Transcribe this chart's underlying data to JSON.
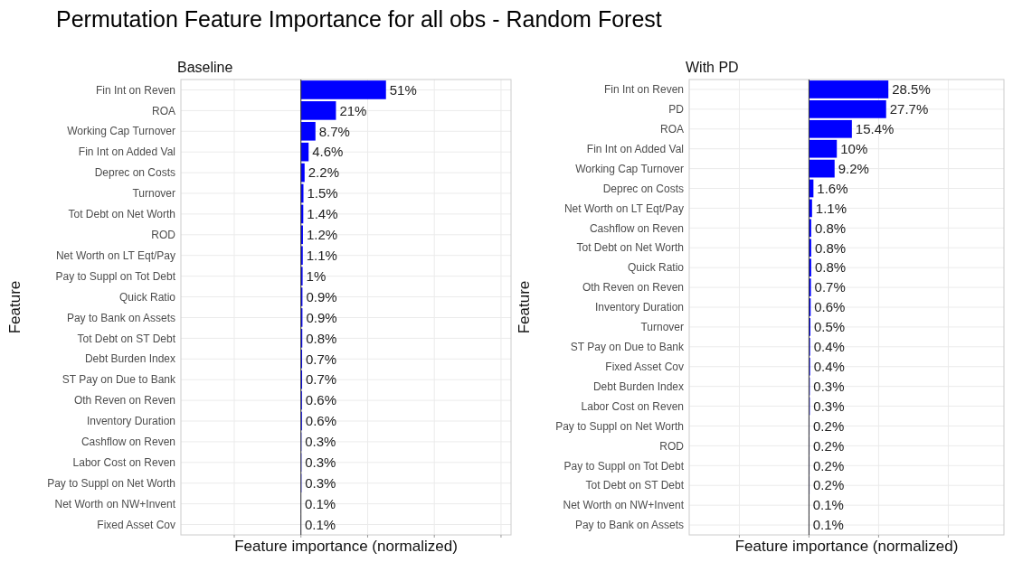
{
  "chart_data": [
    {
      "type": "bar",
      "orientation": "horizontal",
      "title": "Permutation Feature Importance for all obs - Random Forest",
      "subtitle": "Baseline",
      "xlabel": "Feature importance (normalized)",
      "ylabel": "Feature",
      "grid": true,
      "tick_labels": "y",
      "xlim": [
        -72,
        126
      ],
      "xticks": [
        {
          "value": -40,
          "label": null
        },
        {
          "value": 0,
          "label": null
        },
        {
          "value": 40,
          "label": null
        },
        {
          "value": 80,
          "label": null
        },
        {
          "value": 120,
          "label": null
        }
      ],
      "categories": [
        "Fin Int on Reven",
        "ROA",
        "Working Cap Turnover",
        "Fin Int on Added Val",
        "Deprec on Costs",
        "Turnover",
        "Tot Debt on Net Worth",
        "ROD",
        "Net Worth on LT Eqt/Pay",
        "Pay to Suppl on Tot Debt",
        "Quick Ratio",
        "Pay to Bank on Assets",
        "Tot Debt on ST Debt",
        "Debt Burden Index",
        "ST Pay on Due to Bank",
        "Oth Reven on Reven",
        "Inventory Duration",
        "Cashflow on Reven",
        "Labor Cost on Reven",
        "Pay to Suppl on Net Worth",
        "Net Worth on NW+Invent",
        "Fixed Asset Cov"
      ],
      "color": "#0000ff",
      "values": [
        51,
        21,
        8.7,
        4.6,
        2.2,
        1.5,
        1.4,
        1.2,
        1.1,
        1,
        0.9,
        0.9,
        0.8,
        0.7,
        0.7,
        0.6,
        0.6,
        0.3,
        0.3,
        0.3,
        0.1,
        0.1
      ],
      "value_labels": [
        "51%",
        "21%",
        "8.7%",
        "4.6%",
        "2.2%",
        "1.5%",
        "1.4%",
        "1.2%",
        "1.1%",
        "1%",
        "0.9%",
        "0.9%",
        "0.8%",
        "0.7%",
        "0.7%",
        "0.6%",
        "0.6%",
        "0.3%",
        "0.3%",
        "0.3%",
        "0.1%",
        "0.1%"
      ]
    },
    {
      "type": "bar",
      "orientation": "horizontal",
      "subtitle": "With PD",
      "xlabel": "Feature importance (normalized)",
      "ylabel": "Feature",
      "grid": true,
      "tick_labels": "y",
      "xlim": [
        -43,
        70
      ],
      "xticks": [
        {
          "value": -25,
          "label": null
        },
        {
          "value": 0,
          "label": null
        },
        {
          "value": 25,
          "label": null
        },
        {
          "value": 50,
          "label": null
        }
      ],
      "categories": [
        "Fin Int on Reven",
        "PD",
        "ROA",
        "Fin Int on Added Val",
        "Working Cap Turnover",
        "Deprec on Costs",
        "Net Worth on LT Eqt/Pay",
        "Cashflow on Reven",
        "Tot Debt on Net Worth",
        "Quick Ratio",
        "Oth Reven on Reven",
        "Inventory Duration",
        "Turnover",
        "ST Pay on Due to Bank",
        "Fixed Asset Cov",
        "Debt Burden Index",
        "Labor Cost on Reven",
        "Pay to Suppl on Net Worth",
        "ROD",
        "Pay to Suppl on Tot Debt",
        "Tot Debt on ST Debt",
        "Net Worth on NW+Invent",
        "Pay to Bank on Assets"
      ],
      "color": "#0000ff",
      "values": [
        28.5,
        27.7,
        15.4,
        10,
        9.2,
        1.6,
        1.1,
        0.8,
        0.8,
        0.8,
        0.7,
        0.6,
        0.5,
        0.4,
        0.4,
        0.3,
        0.3,
        0.2,
        0.2,
        0.2,
        0.2,
        0.1,
        0.1
      ],
      "value_labels": [
        "28.5%",
        "27.7%",
        "15.4%",
        "10%",
        "9.2%",
        "1.6%",
        "1.1%",
        "0.8%",
        "0.8%",
        "0.8%",
        "0.7%",
        "0.6%",
        "0.5%",
        "0.4%",
        "0.4%",
        "0.3%",
        "0.3%",
        "0.2%",
        "0.2%",
        "0.2%",
        "0.2%",
        "0.1%",
        "0.1%"
      ]
    }
  ]
}
